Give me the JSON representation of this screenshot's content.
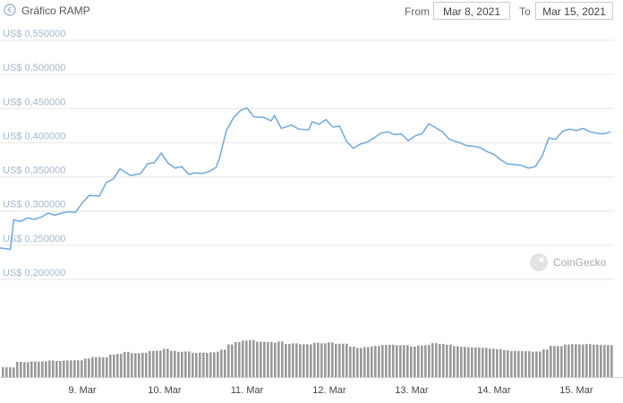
{
  "header": {
    "title": "Gráfico RAMP",
    "from_label": "From",
    "from_value": "Mar 8, 2021",
    "to_label": "To",
    "to_value": "Mar 15, 2021"
  },
  "watermark": "CoinGecko",
  "colors": {
    "line": "#6fa8dc",
    "volume": "#999999",
    "grid": "#e6e6e6",
    "ytick": "#a3b8cb"
  },
  "chart_data": {
    "type": "line",
    "title": "Gráfico RAMP",
    "x_axis": {
      "type": "date",
      "range": [
        "2021-03-08T00:00",
        "2021-03-15T11:00"
      ],
      "ticks": [
        "9. Mar",
        "10. Mar",
        "11. Mar",
        "12. Mar",
        "13. Mar",
        "14. Mar",
        "15. Mar"
      ]
    },
    "y_axis": {
      "range": [
        0.2,
        0.55
      ],
      "ticks": [
        0.2,
        0.25,
        0.3,
        0.35,
        0.4,
        0.45,
        0.5,
        0.55
      ],
      "tick_labels": [
        "US$ 0,200000",
        "US$ 0,250000",
        "US$ 0,300000",
        "US$ 0,350000",
        "US$ 0,400000",
        "US$ 0,450000",
        "US$ 0,500000",
        "US$ 0,550000"
      ]
    },
    "grid": true,
    "legend": "none",
    "series": [
      {
        "values": [
          [
            "2021-03-08T00:00",
            0.246
          ],
          [
            "2021-03-08T03:00",
            0.244
          ],
          [
            "2021-03-08T04:00",
            0.287
          ],
          [
            "2021-03-08T06:00",
            0.285
          ],
          [
            "2021-03-08T08:00",
            0.29
          ],
          [
            "2021-03-08T10:00",
            0.288
          ],
          [
            "2021-03-08T12:00",
            0.291
          ],
          [
            "2021-03-08T14:00",
            0.297
          ],
          [
            "2021-03-08T16:00",
            0.294
          ],
          [
            "2021-03-08T18:00",
            0.297
          ],
          [
            "2021-03-08T20:00",
            0.299
          ],
          [
            "2021-03-08T22:00",
            0.298
          ],
          [
            "2021-03-09T00:00",
            0.312
          ],
          [
            "2021-03-09T02:00",
            0.323
          ],
          [
            "2021-03-09T05:00",
            0.322
          ],
          [
            "2021-03-09T07:00",
            0.342
          ],
          [
            "2021-03-09T09:00",
            0.347
          ],
          [
            "2021-03-09T11:00",
            0.362
          ],
          [
            "2021-03-09T14:00",
            0.352
          ],
          [
            "2021-03-09T17:00",
            0.355
          ],
          [
            "2021-03-09T19:00",
            0.369
          ],
          [
            "2021-03-09T21:00",
            0.371
          ],
          [
            "2021-03-09T23:00",
            0.385
          ],
          [
            "2021-03-10T01:00",
            0.37
          ],
          [
            "2021-03-10T03:00",
            0.363
          ],
          [
            "2021-03-10T05:00",
            0.365
          ],
          [
            "2021-03-10T07:00",
            0.354
          ],
          [
            "2021-03-10T09:00",
            0.356
          ],
          [
            "2021-03-10T11:00",
            0.355
          ],
          [
            "2021-03-10T13:00",
            0.358
          ],
          [
            "2021-03-10T15:00",
            0.364
          ],
          [
            "2021-03-10T16:00",
            0.378
          ],
          [
            "2021-03-10T18:00",
            0.418
          ],
          [
            "2021-03-10T20:00",
            0.436
          ],
          [
            "2021-03-10T22:00",
            0.447
          ],
          [
            "2021-03-11T00:00",
            0.451
          ],
          [
            "2021-03-11T02:00",
            0.438
          ],
          [
            "2021-03-11T05:00",
            0.437
          ],
          [
            "2021-03-11T07:00",
            0.432
          ],
          [
            "2021-03-11T08:00",
            0.44
          ],
          [
            "2021-03-11T10:00",
            0.421
          ],
          [
            "2021-03-11T13:00",
            0.426
          ],
          [
            "2021-03-11T15:00",
            0.42
          ],
          [
            "2021-03-11T18:00",
            0.419
          ],
          [
            "2021-03-11T19:00",
            0.431
          ],
          [
            "2021-03-11T21:00",
            0.427
          ],
          [
            "2021-03-11T23:00",
            0.434
          ],
          [
            "2021-03-12T01:00",
            0.423
          ],
          [
            "2021-03-12T03:00",
            0.424
          ],
          [
            "2021-03-12T05:00",
            0.402
          ],
          [
            "2021-03-12T07:00",
            0.392
          ],
          [
            "2021-03-12T09:00",
            0.398
          ],
          [
            "2021-03-12T11:00",
            0.401
          ],
          [
            "2021-03-12T13:00",
            0.407
          ],
          [
            "2021-03-12T15:00",
            0.414
          ],
          [
            "2021-03-12T17:00",
            0.416
          ],
          [
            "2021-03-12T19:00",
            0.412
          ],
          [
            "2021-03-12T21:00",
            0.413
          ],
          [
            "2021-03-12T23:00",
            0.403
          ],
          [
            "2021-03-13T01:00",
            0.41
          ],
          [
            "2021-03-13T03:00",
            0.413
          ],
          [
            "2021-03-13T05:00",
            0.428
          ],
          [
            "2021-03-13T07:00",
            0.422
          ],
          [
            "2021-03-13T09:00",
            0.416
          ],
          [
            "2021-03-13T11:00",
            0.405
          ],
          [
            "2021-03-13T14:00",
            0.4
          ],
          [
            "2021-03-13T16:00",
            0.396
          ],
          [
            "2021-03-13T18:00",
            0.395
          ],
          [
            "2021-03-13T20:00",
            0.393
          ],
          [
            "2021-03-13T22:00",
            0.387
          ],
          [
            "2021-03-14T00:00",
            0.383
          ],
          [
            "2021-03-14T02:00",
            0.375
          ],
          [
            "2021-03-14T04:00",
            0.369
          ],
          [
            "2021-03-14T06:00",
            0.368
          ],
          [
            "2021-03-14T08:00",
            0.367
          ],
          [
            "2021-03-14T10:00",
            0.363
          ],
          [
            "2021-03-14T12:00",
            0.365
          ],
          [
            "2021-03-14T14:00",
            0.38
          ],
          [
            "2021-03-14T16:00",
            0.407
          ],
          [
            "2021-03-14T18:00",
            0.405
          ],
          [
            "2021-03-14T20:00",
            0.417
          ],
          [
            "2021-03-14T22:00",
            0.42
          ],
          [
            "2021-03-15T00:00",
            0.418
          ],
          [
            "2021-03-15T02:00",
            0.421
          ],
          [
            "2021-03-15T04:00",
            0.416
          ],
          [
            "2021-03-15T06:00",
            0.414
          ],
          [
            "2021-03-15T08:00",
            0.413
          ],
          [
            "2021-03-15T10:00",
            0.416
          ]
        ]
      }
    ]
  }
}
